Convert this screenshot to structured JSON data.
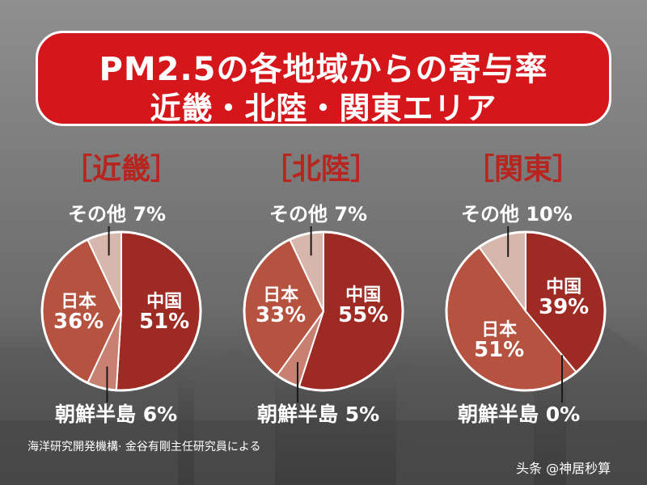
{
  "title": {
    "line1": "PM2.5の各地域からの寄与率",
    "line2": "近畿・北陸・関東エリア"
  },
  "colors": {
    "title_bg": "#d5171c",
    "china": "#9e2a24",
    "japan": "#b65240",
    "korea": "#c88070",
    "other": "#d7b6ab",
    "heading": "#b8241e"
  },
  "chart_data": [
    {
      "type": "pie",
      "title": "［近畿］",
      "slices": [
        {
          "label": "中国",
          "value": 51,
          "text": "51%"
        },
        {
          "label": "朝鮮半島",
          "value": 6,
          "text": "朝鮮半島 6%"
        },
        {
          "label": "日本",
          "value": 36,
          "text": "36%"
        },
        {
          "label": "その他",
          "value": 7,
          "text": "その他 7%"
        }
      ]
    },
    {
      "type": "pie",
      "title": "［北陸］",
      "slices": [
        {
          "label": "中国",
          "value": 55,
          "text": "55%"
        },
        {
          "label": "朝鮮半島",
          "value": 5,
          "text": "朝鮮半島 5%"
        },
        {
          "label": "日本",
          "value": 33,
          "text": "33%"
        },
        {
          "label": "その他",
          "value": 7,
          "text": "その他 7%"
        }
      ]
    },
    {
      "type": "pie",
      "title": "［関東］",
      "slices": [
        {
          "label": "中国",
          "value": 39,
          "text": "39%"
        },
        {
          "label": "朝鮮半島",
          "value": 0,
          "text": "朝鮮半島 0%"
        },
        {
          "label": "日本",
          "value": 51,
          "text": "51%"
        },
        {
          "label": "その他",
          "value": 10,
          "text": "その他 10%"
        }
      ]
    }
  ],
  "source": "海洋研究開発機構· 金谷有剛主任研究員による",
  "watermark": "头条 @神居秒算"
}
